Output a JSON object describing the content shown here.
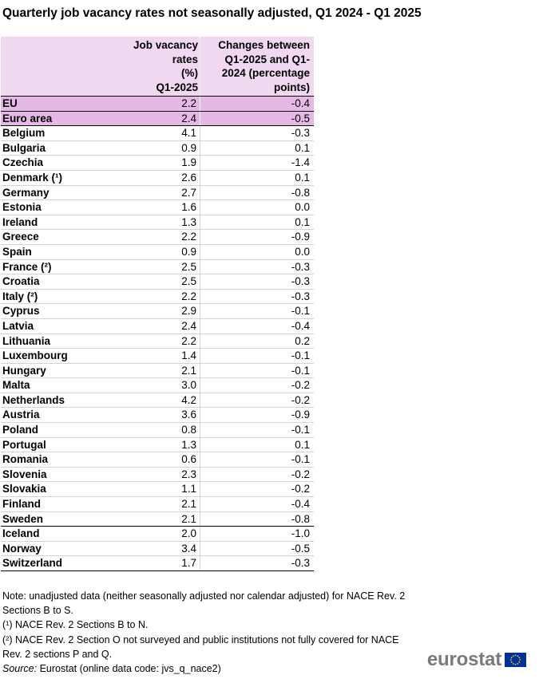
{
  "title": "Quarterly job vacancy rates not seasonally adjusted, Q1 2024 - Q1 2025",
  "chart_data": {
    "type": "table",
    "columns": [
      "Job vacancy rates (%) Q1-2025",
      "Changes between Q1-2025 and Q1-2024 (percentage points)"
    ],
    "header_lines": {
      "col1": [
        "Job vacancy",
        "rates",
        "(%)",
        "Q1-2025"
      ],
      "col2": [
        "Changes between",
        "Q1-2025 and Q1-",
        "2024 (percentage",
        "points)"
      ]
    },
    "rows": [
      {
        "name": "EU",
        "rate": "2.2",
        "change": "-0.4"
      },
      {
        "name": "Euro area",
        "rate": "2.4",
        "change": "-0.5"
      },
      {
        "name": "Belgium",
        "rate": "4.1",
        "change": "-0.3"
      },
      {
        "name": "Bulgaria",
        "rate": "0.9",
        "change": "0.1"
      },
      {
        "name": "Czechia",
        "rate": "1.9",
        "change": "-1.4"
      },
      {
        "name": "Denmark (¹)",
        "rate": "2.6",
        "change": "0.1"
      },
      {
        "name": "Germany",
        "rate": "2.7",
        "change": "-0.8"
      },
      {
        "name": "Estonia",
        "rate": "1.6",
        "change": "0.0"
      },
      {
        "name": "Ireland",
        "rate": "1.3",
        "change": "0.1"
      },
      {
        "name": "Greece",
        "rate": "2.2",
        "change": "-0.9"
      },
      {
        "name": "Spain",
        "rate": "0.9",
        "change": "0.0"
      },
      {
        "name": "France (²)",
        "rate": "2.5",
        "change": "-0.3"
      },
      {
        "name": "Croatia",
        "rate": "2.5",
        "change": "-0.3"
      },
      {
        "name": "Italy (²)",
        "rate": "2.2",
        "change": "-0.3"
      },
      {
        "name": "Cyprus",
        "rate": "2.9",
        "change": "-0.1"
      },
      {
        "name": "Latvia",
        "rate": "2.4",
        "change": "-0.4"
      },
      {
        "name": "Lithuania",
        "rate": "2.2",
        "change": "0.2"
      },
      {
        "name": "Luxembourg",
        "rate": "1.4",
        "change": "-0.1"
      },
      {
        "name": "Hungary",
        "rate": "2.1",
        "change": "-0.1"
      },
      {
        "name": "Malta",
        "rate": "3.0",
        "change": "-0.2"
      },
      {
        "name": "Netherlands",
        "rate": "4.2",
        "change": "-0.2"
      },
      {
        "name": "Austria",
        "rate": "3.6",
        "change": "-0.9"
      },
      {
        "name": "Poland",
        "rate": "0.8",
        "change": "-0.1"
      },
      {
        "name": "Portugal",
        "rate": "1.3",
        "change": "0.1"
      },
      {
        "name": "Romania",
        "rate": "0.6",
        "change": "-0.1"
      },
      {
        "name": "Slovenia",
        "rate": "2.3",
        "change": "-0.2"
      },
      {
        "name": "Slovakia",
        "rate": "1.1",
        "change": "-0.2"
      },
      {
        "name": "Finland",
        "rate": "2.1",
        "change": "-0.4"
      },
      {
        "name": "Sweden",
        "rate": "2.1",
        "change": "-0.8"
      },
      {
        "name": "Iceland",
        "rate": "2.0",
        "change": "-1.0"
      },
      {
        "name": "Norway",
        "rate": "3.4",
        "change": "-0.5"
      },
      {
        "name": "Switzerland",
        "rate": "1.7",
        "change": "-0.3"
      }
    ]
  },
  "notes": {
    "note": "Note: unadjusted data (neither seasonally adjusted nor calendar adjusted) for NACE Rev. 2 Sections B to S.",
    "footnote1": "(¹) NACE Rev. 2 Sections B to N.",
    "footnote2": "(²) NACE Rev. 2 Section O not surveyed and public institutions not fully covered for NACE Rev. 2 sections P and Q.",
    "source_label": "Source:",
    "source_text": " Eurostat (online data code: jvs_q_nace2)"
  },
  "logo": {
    "text": "eurostat",
    "flag_icon": "eu-flag-icon"
  },
  "colors": {
    "header_bg": "#f0d8f0",
    "aggregate_bg": "#e6b8e6",
    "logo_text": "#7a7a7a",
    "flag_blue": "#003399",
    "flag_star": "#ffcc00"
  }
}
